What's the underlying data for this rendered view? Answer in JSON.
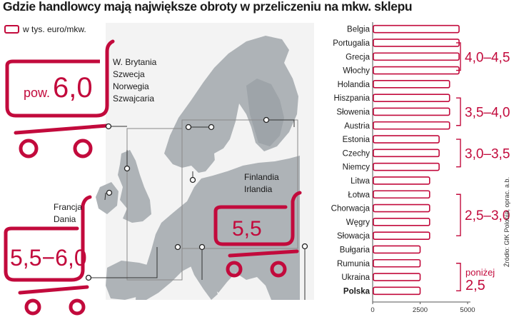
{
  "title": "Gdzie handlowcy mają największe obroty w przeliczeniu na mkw. sklepu",
  "legend_label": "w tys. euro/mkw.",
  "source": "Źródło: GfK Polonia, oprac. a.b.",
  "colors": {
    "accent": "#c20a3c",
    "map_land": "#aeb3b7",
    "map_sea": "#f4f4f4",
    "frame": "#8a8a8a"
  },
  "map_groups": [
    {
      "value_text": "pow. 6,0",
      "countries": [
        "W. Brytania",
        "Szwecja",
        "Norwegia",
        "Szwajcaria"
      ]
    },
    {
      "value_text": "5,5−6,0",
      "countries": [
        "Francja",
        "Dania"
      ]
    },
    {
      "value_text": "5,5",
      "countries": [
        "Finlandia",
        "Irlandia"
      ]
    }
  ],
  "chart_data": {
    "type": "bar",
    "orientation": "horizontal",
    "categories": [
      "Belgia",
      "Portugalia",
      "Grecja",
      "Włochy",
      "Holandia",
      "Hiszpania",
      "Słowenia",
      "Austria",
      "Estonia",
      "Czechy",
      "Niemcy",
      "Litwa",
      "Łotwa",
      "Chorwacja",
      "Węgry",
      "Słowacja",
      "Bułgaria",
      "Rumunia",
      "Ukraina",
      "Polska"
    ],
    "values": [
      4550,
      4550,
      4550,
      4550,
      4050,
      4050,
      4050,
      4050,
      3500,
      3500,
      3500,
      3000,
      3000,
      3000,
      3000,
      3000,
      2500,
      2500,
      2500,
      2500
    ],
    "highlight": "Polska",
    "xlim": [
      0,
      5000
    ],
    "xticks": [
      "0",
      "2500",
      "5000"
    ],
    "range_labels": [
      {
        "text": "4,0–4,5",
        "from": 1,
        "to": 3
      },
      {
        "text": "3,5–4,0",
        "from": 5,
        "to": 7
      },
      {
        "text": "3,0–3,5",
        "from": 8,
        "to": 10
      },
      {
        "text": "2,5–3,0",
        "from": 12,
        "to": 15
      },
      {
        "text": "poniżej",
        "text2": "2,5",
        "from": 17,
        "to": 19
      }
    ]
  }
}
